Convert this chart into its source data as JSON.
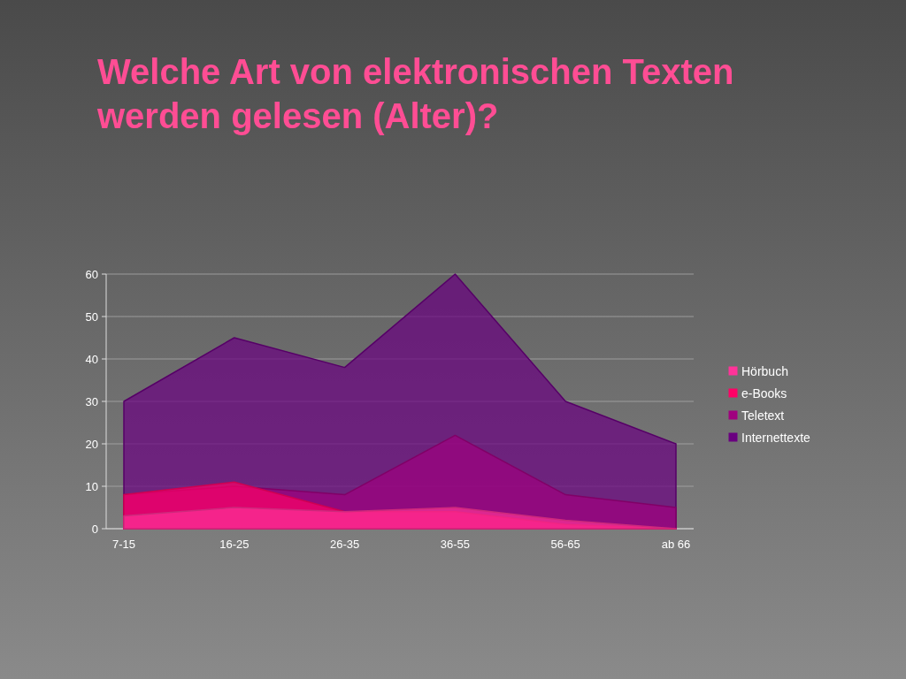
{
  "chart_data": {
    "type": "area",
    "title": "Welche Art von elektronischen Texten werden gelesen (Alter)?",
    "categories": [
      "7-15",
      "16-25",
      "26-35",
      "36-55",
      "56-65",
      "ab 66"
    ],
    "series": [
      {
        "name": "Hörbuch",
        "color": "#ff3399",
        "values": [
          3,
          5,
          4,
          5,
          2,
          0
        ]
      },
      {
        "name": "e-Books",
        "color": "#ff0066",
        "values": [
          8,
          11,
          4,
          4,
          1,
          0
        ]
      },
      {
        "name": "Teletext",
        "color": "#a0007f",
        "values": [
          8,
          10,
          8,
          22,
          8,
          5
        ]
      },
      {
        "name": "Internettexte",
        "color": "#6a0080",
        "values": [
          30,
          45,
          38,
          60,
          30,
          20
        ]
      }
    ],
    "ylim": [
      0,
      60
    ],
    "yticks": [
      0,
      10,
      20,
      30,
      40,
      50,
      60
    ],
    "grid": "y",
    "legend": "right"
  }
}
